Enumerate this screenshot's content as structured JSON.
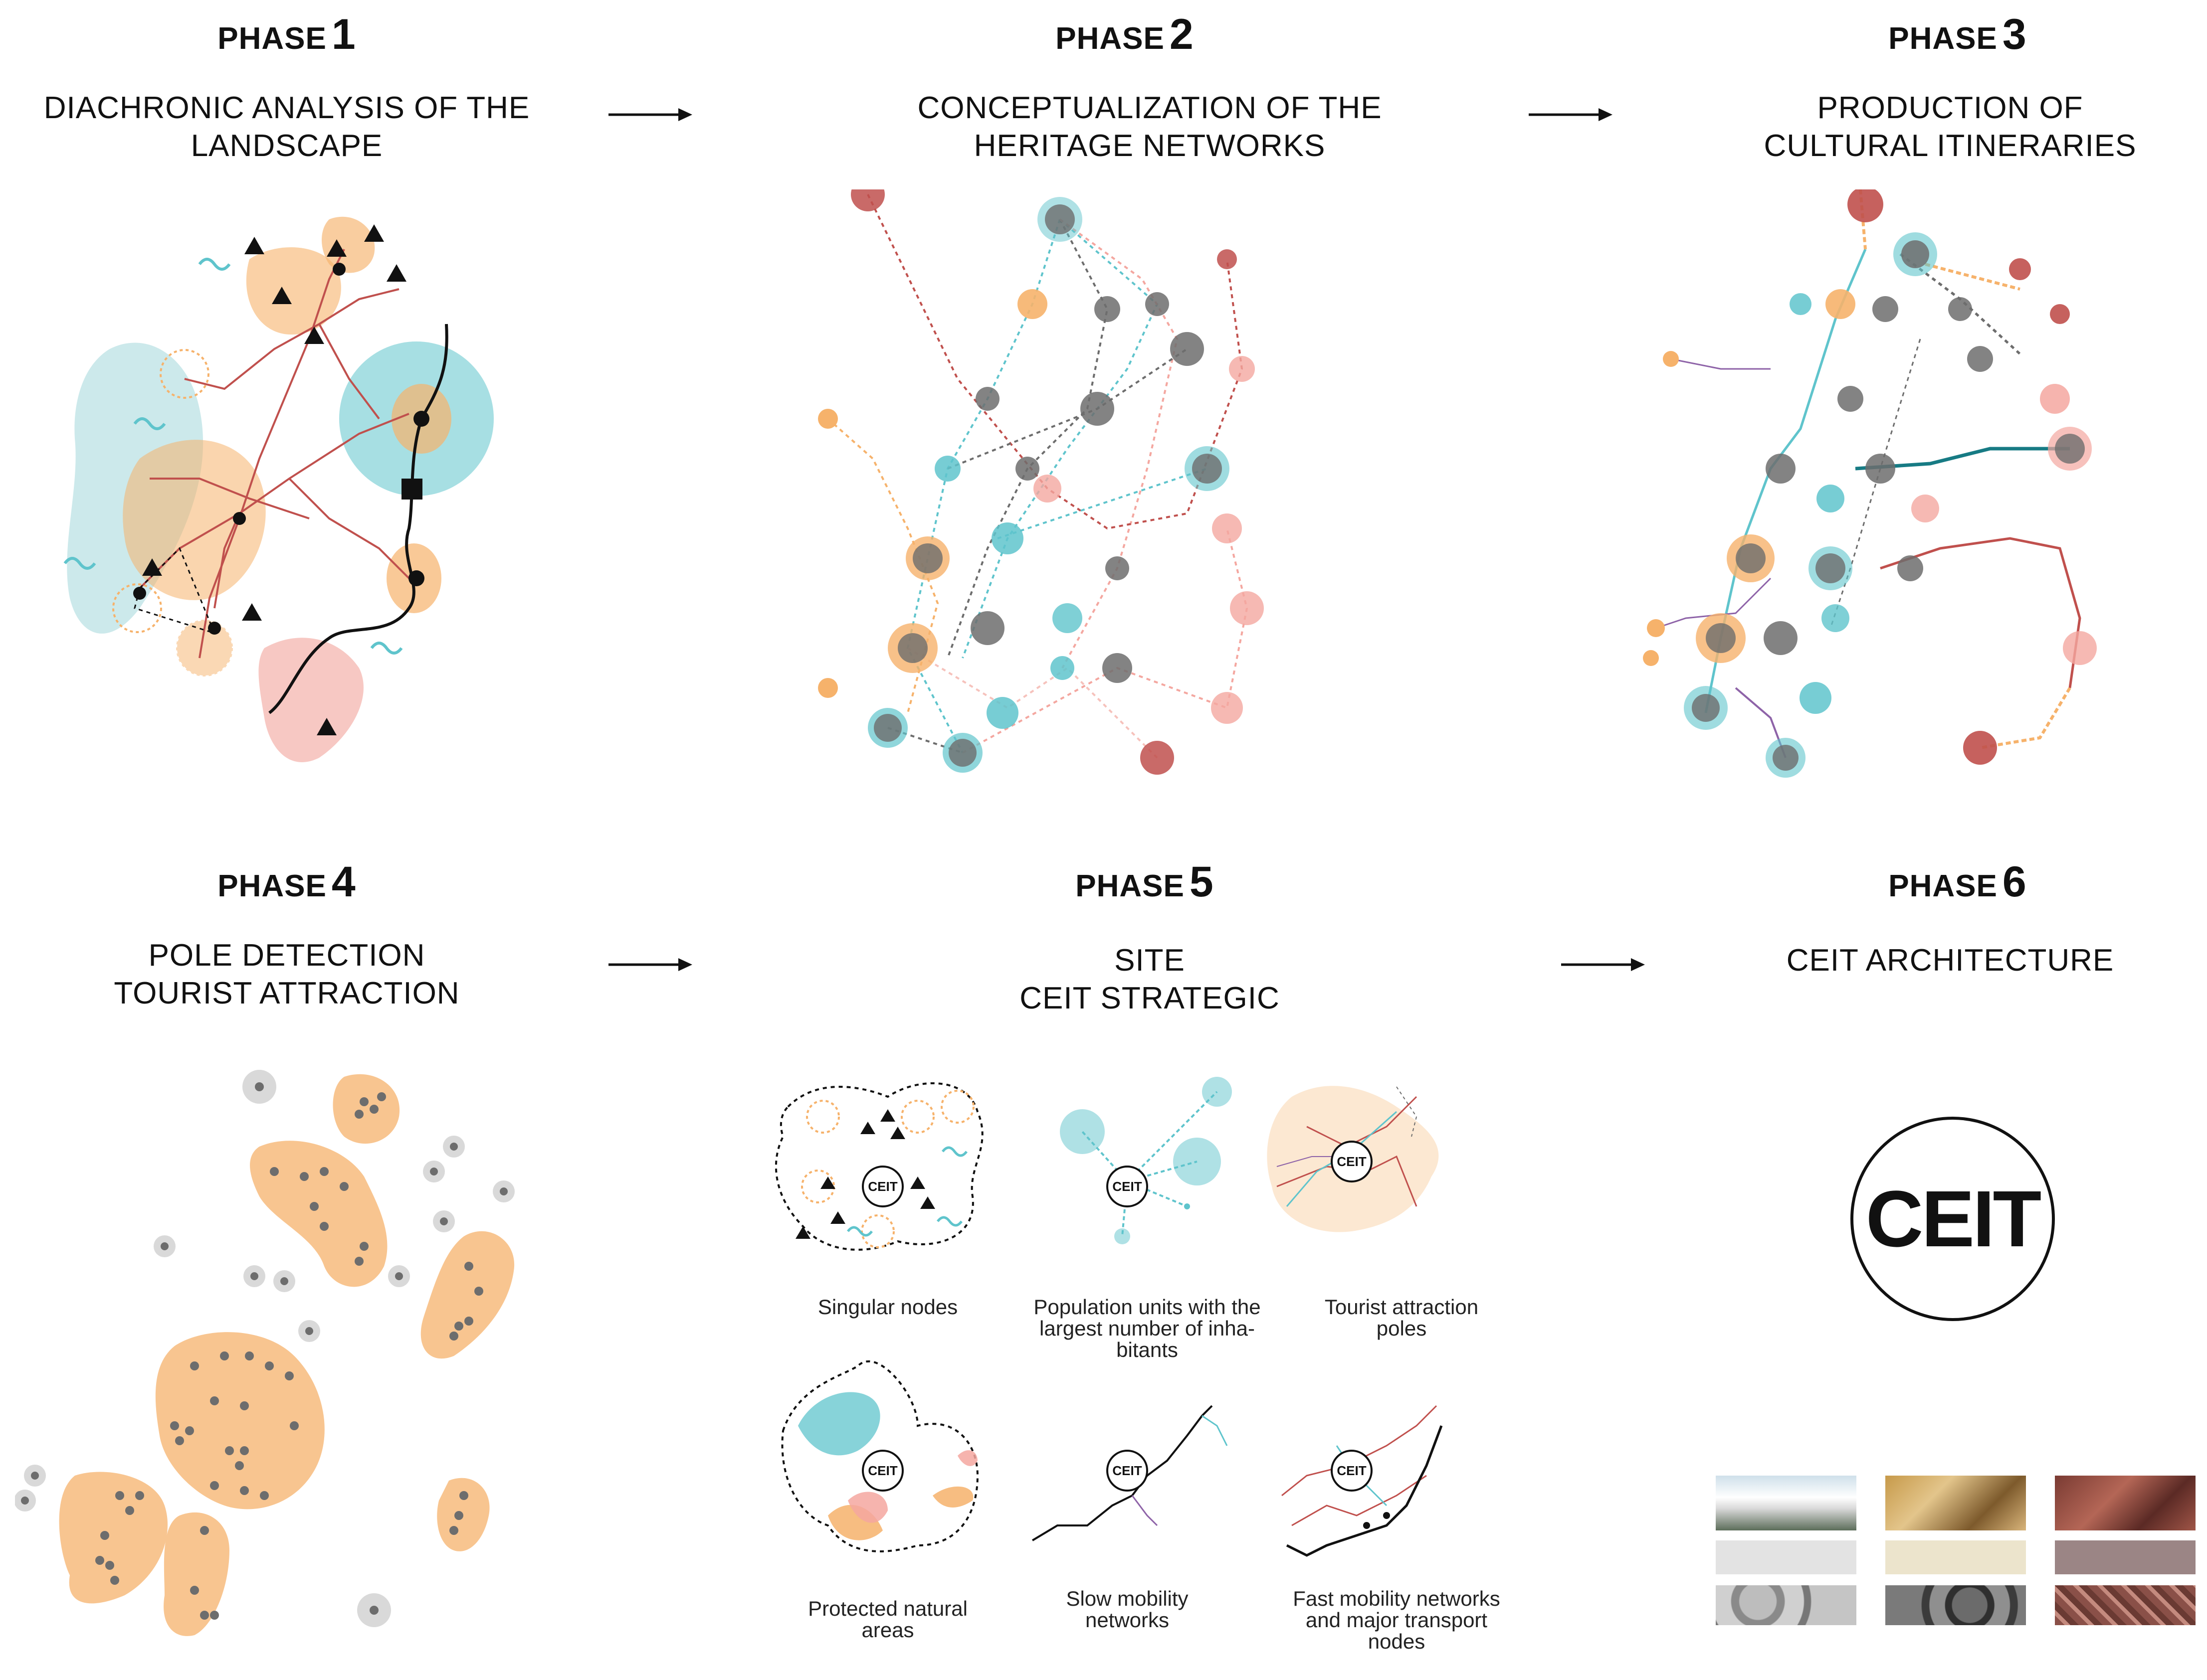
{
  "phases": [
    {
      "label": "PHASE",
      "number": "1",
      "title": [
        "DIACHRONIC ANALYSIS OF THE",
        "LANDSCAPE"
      ]
    },
    {
      "label": "PHASE",
      "number": "2",
      "title": [
        "CONCEPTUALIZATION OF THE",
        "HERITAGE NETWORKS"
      ]
    },
    {
      "label": "PHASE",
      "number": "3",
      "title": [
        "PRODUCTION OF",
        "CULTURAL ITINERARIES"
      ]
    },
    {
      "label": "PHASE",
      "number": "4",
      "title": [
        "POLE DETECTION",
        "TOURIST ATTRACTION"
      ]
    },
    {
      "label": "PHASE",
      "number": "5",
      "title": [
        "SITE",
        "CEIT STRATEGIC"
      ]
    },
    {
      "label": "PHASE",
      "number": "6",
      "title": [
        "CEIT ARCHITECTURE"
      ]
    }
  ],
  "phase5_panels": [
    {
      "caption": [
        "Singular nodes"
      ]
    },
    {
      "caption": [
        "Population units with the",
        "largest number of inha-",
        "bitants"
      ]
    },
    {
      "caption": [
        "Tourist attraction",
        "poles"
      ]
    },
    {
      "caption": [
        "Protected natural",
        "areas"
      ]
    },
    {
      "caption": [
        "Slow mobility",
        "networks"
      ]
    },
    {
      "caption": [
        "Fast mobility networks",
        "and major transport",
        "nodes"
      ]
    }
  ],
  "node_label": "CEIT",
  "phase6": {
    "logo_text": "CEIT"
  },
  "colors": {
    "orange": "#f6b26b",
    "teal": "#5fc4cc",
    "light_teal": "#bfe4e6",
    "red": "#c0504d",
    "salmon": "#f4a7a0",
    "pink": "#f6c2bc",
    "grey": "#6d6d6d",
    "dark": "#111111",
    "purple": "#8e63a8",
    "material_swatches": [
      "#e3e3e3",
      "#ece4cc",
      "#9b8585"
    ]
  },
  "icons": [
    "triangle-icon",
    "wave-icon",
    "square-node-icon",
    "arrow-right-icon"
  ]
}
